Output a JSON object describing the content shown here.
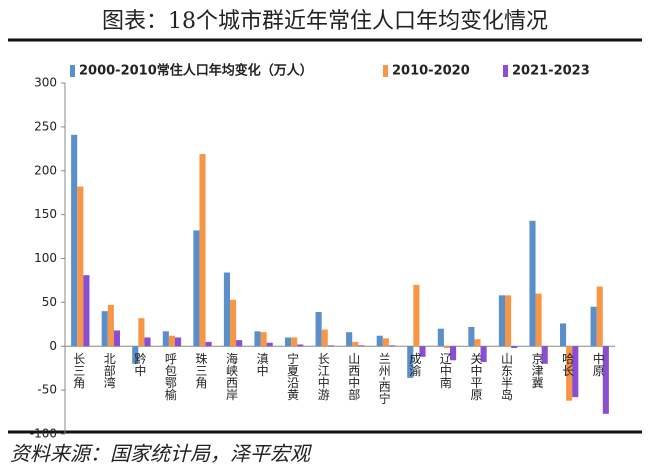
{
  "chart_data": {
    "type": "bar",
    "title": "图表：18个城市群近年常住人口年均变化情况",
    "source": "资料来源：国家统计局，泽平宏观",
    "categories": [
      "长三角",
      "北部湾",
      "黔中",
      "呼包鄂榆",
      "珠三角",
      "海峡西岸",
      "滇中",
      "宁夏沿黄",
      "长江中游",
      "山西中部",
      "兰州-西宁",
      "成渝",
      "辽中南",
      "关中平原",
      "山东半岛",
      "京津冀",
      "哈长",
      "中原"
    ],
    "series": [
      {
        "name": "2000-2010常住人口年均变化（万人）",
        "color": "#5b8fc9",
        "values": [
          241,
          40,
          -20,
          17,
          132,
          84,
          17,
          10,
          39,
          16,
          12,
          -36,
          20,
          22,
          58,
          143,
          26,
          45
        ]
      },
      {
        "name": "2010-2020",
        "color": "#f79646",
        "values": [
          182,
          47,
          32,
          12,
          219,
          53,
          16,
          10,
          19,
          5,
          9,
          70,
          -2,
          8,
          58,
          60,
          -62,
          68
        ]
      },
      {
        "name": "2021-2023",
        "color": "#8a4fd1",
        "values": [
          81,
          18,
          10,
          10,
          5,
          7,
          4,
          2,
          1,
          1,
          1,
          -12,
          -16,
          -18,
          -2,
          -20,
          -58,
          -77
        ]
      }
    ],
    "ylim": [
      -100,
      300
    ],
    "yticks": [
      -100,
      -50,
      0,
      50,
      100,
      150,
      200,
      250,
      300
    ],
    "grid": false
  }
}
